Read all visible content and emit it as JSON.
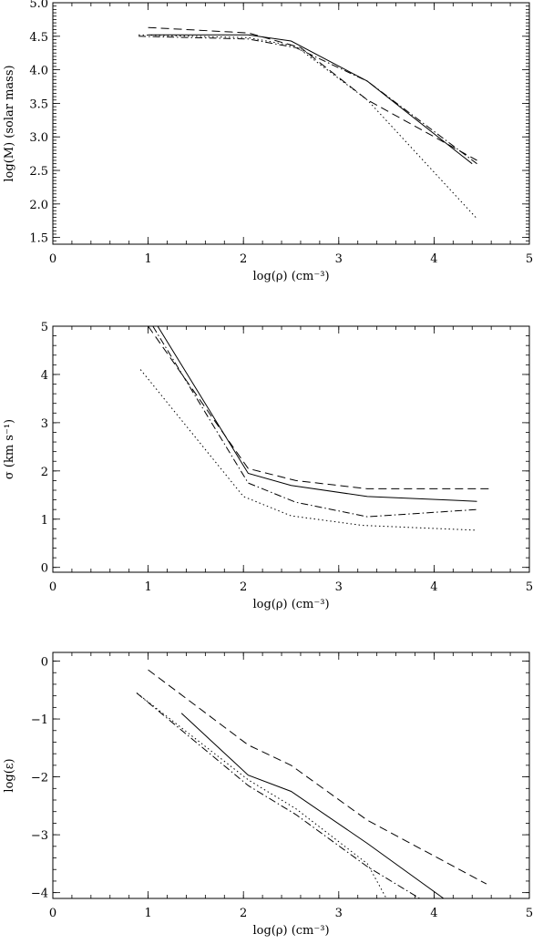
{
  "chart_data": [
    {
      "type": "line",
      "xlabel": "log(ρ)  (cm⁻³)",
      "ylabel": "log(M)  (solar mass)",
      "xlim": [
        0,
        5
      ],
      "ylim": [
        1.4,
        5.0
      ],
      "xticks": [
        "0",
        "1",
        "2",
        "3",
        "4",
        "5"
      ],
      "yticks": [
        "1.5",
        "2.0",
        "2.5",
        "3.0",
        "3.5",
        "4.0",
        "4.5",
        "5.0"
      ],
      "series": [
        {
          "style": "solid",
          "x": [
            1.0,
            2.05,
            2.5,
            3.3,
            4.4
          ],
          "y": [
            4.52,
            4.52,
            4.43,
            3.83,
            2.6
          ]
        },
        {
          "style": "dashed",
          "x": [
            1.0,
            2.05,
            2.6,
            3.3,
            4.45
          ],
          "y": [
            4.63,
            4.55,
            4.33,
            3.55,
            2.65
          ]
        },
        {
          "style": "dotted",
          "x": [
            0.9,
            2.05,
            2.55,
            3.3,
            4.45
          ],
          "y": [
            4.52,
            4.48,
            4.35,
            3.55,
            1.78
          ]
        },
        {
          "style": "dashdot",
          "x": [
            0.9,
            2.05,
            2.55,
            3.3,
            4.45
          ],
          "y": [
            4.5,
            4.46,
            4.33,
            3.83,
            2.6
          ]
        }
      ]
    },
    {
      "type": "line",
      "xlabel": "log(ρ)  (cm⁻³)",
      "ylabel": "σ  (km s⁻¹)",
      "xlim": [
        0,
        5
      ],
      "ylim": [
        -0.1,
        5.0
      ],
      "xticks": [
        "0",
        "1",
        "2",
        "3",
        "4",
        "5"
      ],
      "yticks": [
        "0",
        "1",
        "2",
        "3",
        "4",
        "5"
      ],
      "series": [
        {
          "style": "solid",
          "x": [
            1.1,
            2.05,
            2.5,
            3.3,
            4.45
          ],
          "y": [
            5.0,
            1.95,
            1.7,
            1.47,
            1.37
          ]
        },
        {
          "style": "dashed",
          "x": [
            1.0,
            2.05,
            2.55,
            3.3,
            4.6
          ],
          "y": [
            5.0,
            2.05,
            1.8,
            1.63,
            1.63
          ]
        },
        {
          "style": "dotted",
          "x": [
            0.92,
            2.0,
            2.5,
            3.25,
            4.45
          ],
          "y": [
            4.1,
            1.47,
            1.07,
            0.87,
            0.77
          ]
        },
        {
          "style": "dashdot",
          "x": [
            1.05,
            2.05,
            2.55,
            3.3,
            4.45
          ],
          "y": [
            5.0,
            1.75,
            1.35,
            1.05,
            1.2
          ]
        }
      ]
    },
    {
      "type": "line",
      "xlabel": "log(ρ)  (cm⁻³)",
      "ylabel": "log(ε)",
      "xlim": [
        0,
        5
      ],
      "ylim": [
        -4.1,
        0.15
      ],
      "xticks": [
        "0",
        "1",
        "2",
        "3",
        "4",
        "5"
      ],
      "yticks": [
        "−4",
        "−3",
        "−2",
        "−1",
        "0"
      ],
      "series": [
        {
          "style": "solid",
          "x": [
            1.35,
            2.05,
            2.5,
            3.3,
            4.1
          ],
          "y": [
            -0.9,
            -1.97,
            -2.25,
            -3.15,
            -4.1
          ]
        },
        {
          "style": "dashed",
          "x": [
            1.0,
            2.05,
            2.5,
            3.3,
            4.55
          ],
          "y": [
            -0.15,
            -1.45,
            -1.8,
            -2.75,
            -3.85
          ]
        },
        {
          "style": "dotted",
          "x": [
            0.88,
            2.05,
            2.55,
            3.3,
            3.5
          ],
          "y": [
            -0.55,
            -2.05,
            -2.55,
            -3.5,
            -4.1
          ]
        },
        {
          "style": "dashdot",
          "x": [
            0.88,
            2.05,
            2.55,
            3.3,
            3.85
          ],
          "y": [
            -0.55,
            -2.15,
            -2.65,
            -3.55,
            -4.1
          ]
        }
      ]
    }
  ]
}
